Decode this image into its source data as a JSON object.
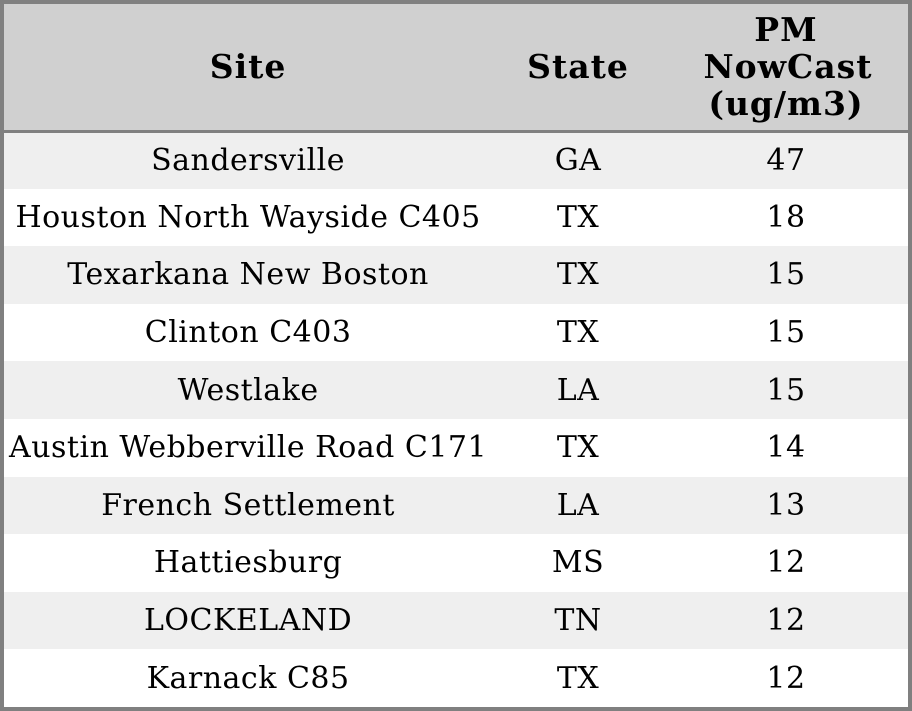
{
  "chart_data": {
    "type": "table",
    "columns": [
      "Site",
      "State",
      "PM NowCast (ug/m3)"
    ],
    "rows": [
      [
        "Sandersville",
        "GA",
        47
      ],
      [
        "Houston North Wayside C405",
        "TX",
        18
      ],
      [
        "Texarkana New Boston",
        "TX",
        15
      ],
      [
        "Clinton C403",
        "TX",
        15
      ],
      [
        "Westlake",
        "LA",
        15
      ],
      [
        "Austin Webberville Road C171",
        "TX",
        14
      ],
      [
        "French Settlement",
        "LA",
        13
      ],
      [
        "Hattiesburg",
        "MS",
        12
      ],
      [
        "LOCKELAND",
        "TN",
        12
      ],
      [
        "Karnack C85",
        "TX",
        12
      ]
    ]
  },
  "colors": {
    "header_bg": "#d0d0d0",
    "row_stripe_bg": "#efefef",
    "row_bg": "#ffffff",
    "border": "#808080",
    "text": "#000000"
  }
}
